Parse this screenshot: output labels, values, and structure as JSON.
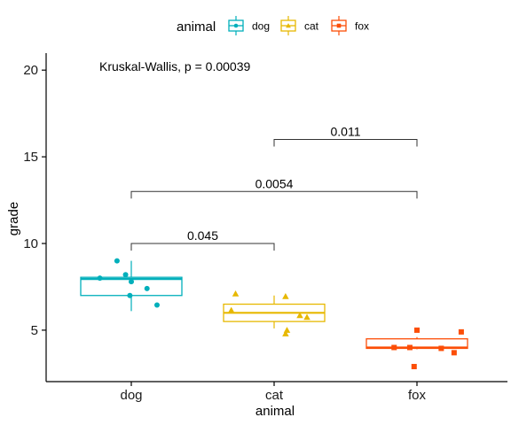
{
  "chart_data": {
    "type": "box",
    "xlabel": "animal",
    "ylabel": "grade",
    "ylim": [
      2,
      21
    ],
    "yticks": [
      5,
      10,
      15,
      20
    ],
    "categories": [
      "dog",
      "cat",
      "fox"
    ],
    "legend": {
      "title": "animal",
      "position": "top",
      "entries": [
        {
          "label": "dog",
          "color": "#00AFBB",
          "shape": "circle"
        },
        {
          "label": "cat",
          "color": "#E7B800",
          "shape": "triangle"
        },
        {
          "label": "fox",
          "color": "#FC4E07",
          "shape": "square"
        }
      ]
    },
    "series": [
      {
        "name": "dog",
        "color": "#00AFBB",
        "shape": "circle",
        "box": {
          "whisker_low": 6.1,
          "q1": 7.0,
          "median": 7.95,
          "q3": 8.05,
          "whisker_high": 9.0
        },
        "points": [
          {
            "o": -0.1,
            "y": 9.0
          },
          {
            "o": -0.22,
            "y": 8.0
          },
          {
            "o": -0.04,
            "y": 8.2
          },
          {
            "o": 0.0,
            "y": 7.8
          },
          {
            "o": 0.11,
            "y": 7.4
          },
          {
            "o": -0.01,
            "y": 7.0
          },
          {
            "o": 0.18,
            "y": 6.45
          }
        ]
      },
      {
        "name": "cat",
        "color": "#E7B800",
        "shape": "triangle",
        "box": {
          "whisker_low": 5.1,
          "q1": 5.5,
          "median": 6.0,
          "q3": 6.5,
          "whisker_high": 7.0
        },
        "points": [
          {
            "o": -0.27,
            "y": 7.1
          },
          {
            "o": 0.08,
            "y": 6.95
          },
          {
            "o": -0.3,
            "y": 6.15
          },
          {
            "o": 0.18,
            "y": 5.85
          },
          {
            "o": 0.23,
            "y": 5.75
          },
          {
            "o": 0.09,
            "y": 5.0
          },
          {
            "o": 0.08,
            "y": 4.8
          }
        ]
      },
      {
        "name": "fox",
        "color": "#FC4E07",
        "shape": "square",
        "box": {
          "whisker_low": 3.9,
          "q1": 3.95,
          "median": 4.0,
          "q3": 4.5,
          "whisker_high": 4.6
        },
        "points": [
          {
            "o": 0.0,
            "y": 5.0
          },
          {
            "o": 0.31,
            "y": 4.9
          },
          {
            "o": -0.16,
            "y": 4.0
          },
          {
            "o": -0.05,
            "y": 4.0
          },
          {
            "o": 0.17,
            "y": 3.95
          },
          {
            "o": 0.26,
            "y": 3.7
          },
          {
            "o": -0.02,
            "y": 2.9
          }
        ]
      }
    ],
    "annotation": "Kruskal-Wallis, p = 0.00039",
    "comparisons": [
      {
        "groups": [
          "dog",
          "cat"
        ],
        "label": "0.045",
        "y": 10.0
      },
      {
        "groups": [
          "dog",
          "fox"
        ],
        "label": "0.0054",
        "y": 13.0
      },
      {
        "groups": [
          "cat",
          "fox"
        ],
        "label": "0.011",
        "y": 16.0
      }
    ]
  }
}
